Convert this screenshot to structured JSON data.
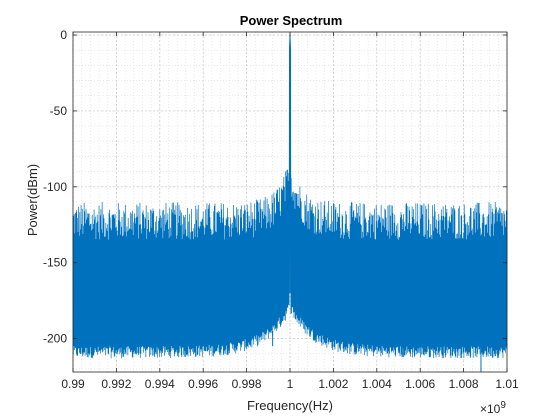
{
  "chart_data": {
    "type": "line",
    "title": "Power Spectrum",
    "xlabel": "Frequency(Hz)",
    "ylabel": "Power(dBm)",
    "x_exponent_label": "×10",
    "x_exponent_power": "9",
    "x_ticks": [
      0.99,
      0.992,
      0.994,
      0.996,
      0.998,
      1,
      1.002,
      1.004,
      1.006,
      1.008,
      1.01
    ],
    "x_tick_labels": [
      "0.99",
      "0.992",
      "0.994",
      "0.996",
      "0.998",
      "1",
      "1.002",
      "1.004",
      "1.006",
      "1.008",
      "1.01"
    ],
    "y_ticks": [
      0,
      -50,
      -100,
      -150,
      -200
    ],
    "y_tick_labels": [
      "0",
      "-50",
      "-100",
      "-150",
      "-200"
    ],
    "xlim": [
      0.99,
      1.01
    ],
    "ylim": [
      -222,
      2
    ],
    "grid": true,
    "minor_grid": true,
    "line_color": "#0072BD",
    "series": [
      {
        "peak_x": 1.0,
        "peak_y": 0,
        "spur_tops_y": [
          -135,
          -105
        ],
        "floor_y_at_edges": -210,
        "floor_y_near_peak": -180,
        "notches_y": [
          -205,
          -212,
          -222
        ]
      }
    ]
  }
}
